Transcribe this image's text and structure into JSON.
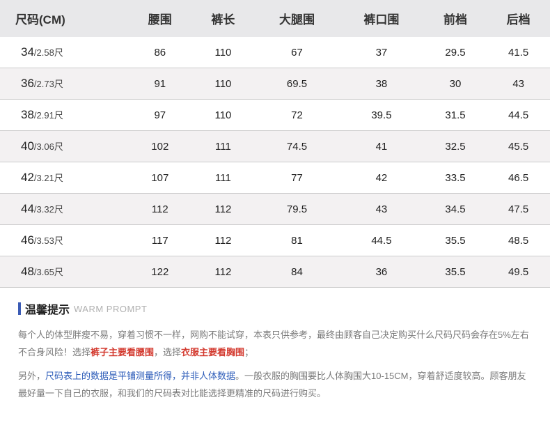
{
  "table": {
    "header_bg": "#e8e8ea",
    "row_even_bg": "#f3f1f2",
    "row_odd_bg": "#ffffff",
    "border_color": "#cccccc",
    "columns": [
      "尺码(CM)",
      "腰围",
      "裤长",
      "大腿围",
      "裤口围",
      "前档",
      "后档"
    ],
    "rows": [
      {
        "size_main": "34",
        "size_sub": "/2.58尺",
        "values": [
          "86",
          "110",
          "67",
          "37",
          "29.5",
          "41.5"
        ]
      },
      {
        "size_main": "36",
        "size_sub": "/2.73尺",
        "values": [
          "91",
          "110",
          "69.5",
          "38",
          "30",
          "43"
        ]
      },
      {
        "size_main": "38",
        "size_sub": "/2.91尺",
        "values": [
          "97",
          "110",
          "72",
          "39.5",
          "31.5",
          "44.5"
        ]
      },
      {
        "size_main": "40",
        "size_sub": "/3.06尺",
        "values": [
          "102",
          "111",
          "74.5",
          "41",
          "32.5",
          "45.5"
        ]
      },
      {
        "size_main": "42",
        "size_sub": "/3.21尺",
        "values": [
          "107",
          "111",
          "77",
          "42",
          "33.5",
          "46.5"
        ]
      },
      {
        "size_main": "44",
        "size_sub": "/3.32尺",
        "values": [
          "112",
          "112",
          "79.5",
          "43",
          "34.5",
          "47.5"
        ]
      },
      {
        "size_main": "46",
        "size_sub": "/3.53尺",
        "values": [
          "117",
          "112",
          "81",
          "44.5",
          "35.5",
          "48.5"
        ]
      },
      {
        "size_main": "48",
        "size_sub": "/3.65尺",
        "values": [
          "122",
          "112",
          "84",
          "36",
          "35.5",
          "49.5"
        ]
      }
    ]
  },
  "prompt": {
    "bar_color": "#3b5bb5",
    "title_cn": "温馨提示",
    "title_en": "WARM PROMPT",
    "para1_a": "每个人的体型胖瘦不易，穿着习惯不一样，网购不能试穿，本表只供参考，最终由顾客自己决定购买什么尺码尺码会存在5%左右不合身风险！选择",
    "para1_red1": "裤子主要看腰围",
    "para1_b": "，选择",
    "para1_red2": "衣服主要看胸围",
    "para1_c": "；",
    "para2_a": "另外，",
    "para2_blue": "尺码表上的数据是平铺测量所得，并非人体数据",
    "para2_b": "。一般衣服的胸围要比人体胸围大10-15CM，穿着舒适度较高。顾客朋友最好量一下自己的衣服，和我们的尺码表对比能选择更精准的尺码进行购买。"
  }
}
